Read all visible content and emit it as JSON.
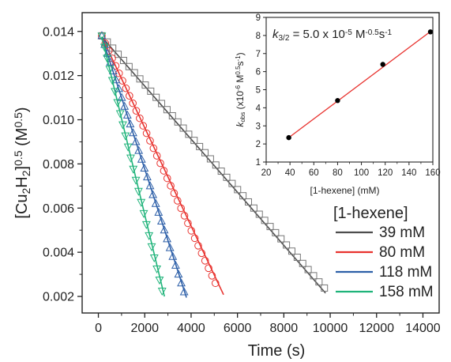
{
  "chart_data": [
    {
      "type": "line",
      "xlabel": "Time (s)",
      "ylabel_parts": [
        "[Cu",
        "2",
        "H",
        "2",
        "]",
        "0.5",
        " (M",
        "0.5",
        ")"
      ],
      "xlim": [
        -700,
        14700
      ],
      "ylim": [
        0.00125,
        0.01485
      ],
      "xticks": [
        0,
        2000,
        4000,
        6000,
        8000,
        10000,
        12000,
        14000
      ],
      "yticks": [
        0.002,
        0.004,
        0.006,
        0.008,
        0.01,
        0.012,
        0.014
      ],
      "ytick_labels": [
        "0.002",
        "0.004",
        "0.006",
        "0.008",
        "0.010",
        "0.012",
        "0.014"
      ],
      "legend_title": "[1-hexene]",
      "legend_position": "lower-right",
      "series": [
        {
          "name": "39 mM",
          "color": "#4d4d4d",
          "marker": "square",
          "fit": {
            "x": [
              150,
              9800
            ],
            "y": [
              0.01375,
              0.00215
            ]
          },
          "points_x": [
            150,
            9750
          ],
          "points_y": [
            0.0138,
            0.00238
          ],
          "n_points": 42
        },
        {
          "name": "80 mM",
          "color": "#e8332f",
          "marker": "circle",
          "fit": {
            "x": [
              150,
              5400
            ],
            "y": [
              0.01375,
              0.00208
            ]
          },
          "points_x": [
            150,
            5050
          ],
          "points_y": [
            0.0138,
            0.0026
          ],
          "n_points": 34
        },
        {
          "name": "118 mM",
          "color": "#2d5fa8",
          "marker": "triangle-up",
          "fit": {
            "x": [
              150,
              3800
            ],
            "y": [
              0.01375,
              0.00195
            ]
          },
          "points_x": [
            150,
            3700
          ],
          "points_y": [
            0.0138,
            0.0022
          ],
          "n_points": 30
        },
        {
          "name": "158 mM",
          "color": "#1fb37a",
          "marker": "triangle-down",
          "fit": {
            "x": [
              150,
              2850
            ],
            "y": [
              0.01375,
              0.002
            ]
          },
          "points_x": [
            150,
            2750
          ],
          "points_y": [
            0.0138,
            0.00225
          ],
          "n_points": 24
        }
      ]
    },
    {
      "type": "scatter",
      "xlabel": "[1-hexene] (mM)",
      "ylabel_parts": [
        "k",
        "obs",
        " (x10",
        "-6",
        " M",
        "0.5",
        "s",
        "-1",
        ")"
      ],
      "xlim": [
        20,
        160
      ],
      "ylim": [
        1,
        9
      ],
      "xticks": [
        20,
        40,
        60,
        80,
        100,
        120,
        140,
        160
      ],
      "yticks": [
        1,
        2,
        3,
        4,
        5,
        6,
        7,
        8,
        9
      ],
      "annotation_parts": [
        "k",
        "3/2",
        " = 5.0 x 10",
        "-5",
        " M",
        "-0.5",
        "s",
        "-1"
      ],
      "x": [
        39,
        80,
        118,
        158
      ],
      "y": [
        2.35,
        4.4,
        6.4,
        8.2
      ],
      "fit": {
        "x": [
          39,
          158
        ],
        "y": [
          2.35,
          8.22
        ]
      },
      "point_color": "#000000",
      "fit_color": "#e8332f"
    }
  ]
}
